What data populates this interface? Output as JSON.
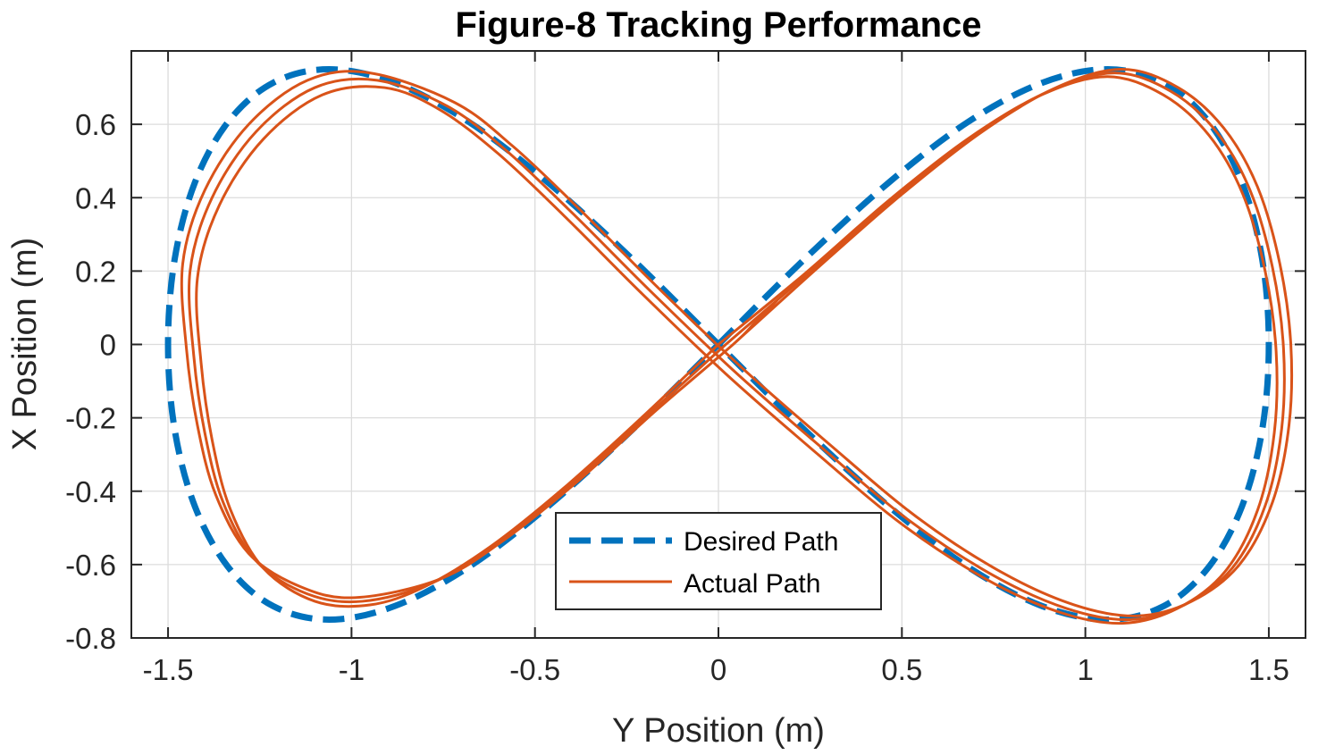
{
  "chart_data": {
    "type": "line",
    "title": "Figure-8 Tracking Performance",
    "xlabel": "Y Position (m)",
    "ylabel": "X Position (m)",
    "xlim": [
      -1.6,
      1.6
    ],
    "ylim": [
      -0.8,
      0.8
    ],
    "grid": true,
    "legend_location": "bottom-center",
    "x_ticks": [
      -1.5,
      -1,
      -0.5,
      0,
      0.5,
      1,
      1.5
    ],
    "x_tick_labels": [
      "-1.5",
      "-1",
      "-0.5",
      "0",
      "0.5",
      "1",
      "1.5"
    ],
    "y_ticks": [
      -0.8,
      -0.6,
      -0.4,
      -0.2,
      0,
      0.2,
      0.4,
      0.6
    ],
    "y_tick_labels": [
      "-0.8",
      "-0.6",
      "-0.4",
      "-0.2",
      "0",
      "0.2",
      "0.4",
      "0.6"
    ],
    "series": [
      {
        "name": "Desired Path",
        "style": "dashed",
        "color": "#0072BD",
        "equation": "y = 1.5*sin(t), x = 0.75*sin(2t)",
        "x": [
          0.0,
          0.234,
          0.464,
          0.681,
          0.882,
          1.061,
          1.214,
          1.336,
          1.427,
          1.482,
          1.5,
          1.482,
          1.427,
          1.336,
          1.214,
          1.061,
          0.882,
          0.681,
          0.464,
          0.234,
          0.0,
          -0.234,
          -0.464,
          -0.681,
          -0.882,
          -1.061,
          -1.214,
          -1.336,
          -1.427,
          -1.482,
          -1.5,
          -1.482,
          -1.427,
          -1.336,
          -1.214,
          -1.061,
          -0.882,
          -0.681,
          -0.464,
          -0.234,
          0.0
        ],
        "y": [
          0.0,
          0.232,
          0.441,
          0.607,
          0.713,
          0.75,
          0.713,
          0.607,
          0.441,
          0.232,
          0.0,
          -0.232,
          -0.441,
          -0.607,
          -0.713,
          -0.75,
          -0.713,
          -0.607,
          -0.441,
          -0.232,
          0.0,
          0.232,
          0.441,
          0.607,
          0.713,
          0.75,
          0.713,
          0.607,
          0.441,
          0.232,
          0.0,
          -0.232,
          -0.441,
          -0.607,
          -0.713,
          -0.75,
          -0.713,
          -0.607,
          -0.441,
          -0.232,
          0.0
        ]
      },
      {
        "name": "Actual Path",
        "style": "solid",
        "color": "#D95319",
        "loops": [
          {
            "x": [
              0.0,
              0.232,
              0.461,
              0.679,
              0.88,
              1.06,
              1.213,
              1.337,
              1.429,
              1.49,
              1.52,
              1.515,
              1.47,
              1.38,
              1.25,
              1.1,
              0.93,
              0.73,
              0.5,
              0.26,
              0.02,
              -0.21,
              -0.42,
              -0.6,
              -0.76,
              -0.91,
              -1.08,
              -1.24,
              -1.36,
              -1.42,
              -1.41,
              -1.38,
              -1.33,
              -1.24,
              -1.1,
              -0.95,
              -0.8,
              -0.62,
              -0.42,
              -0.21,
              0.0
            ],
            "y": [
              0.0,
              0.19,
              0.39,
              0.56,
              0.68,
              0.73,
              0.68,
              0.57,
              0.41,
              0.2,
              -0.02,
              -0.24,
              -0.45,
              -0.62,
              -0.72,
              -0.76,
              -0.73,
              -0.64,
              -0.49,
              -0.29,
              -0.08,
              0.14,
              0.35,
              0.52,
              0.64,
              0.7,
              0.68,
              0.56,
              0.38,
              0.18,
              -0.05,
              -0.26,
              -0.45,
              -0.61,
              -0.7,
              -0.71,
              -0.66,
              -0.55,
              -0.39,
              -0.2,
              0.0
            ]
          },
          {
            "x": [
              0.02,
              0.252,
              0.481,
              0.699,
              0.9,
              1.08,
              1.233,
              1.357,
              1.449,
              1.51,
              1.54,
              1.535,
              1.49,
              1.4,
              1.27,
              1.12,
              0.95,
              0.75,
              0.52,
              0.28,
              0.04,
              -0.19,
              -0.4,
              -0.58,
              -0.74,
              -0.93,
              -1.1,
              -1.26,
              -1.38,
              -1.44,
              -1.43,
              -1.4,
              -1.35,
              -1.26,
              -1.12,
              -0.97,
              -0.78,
              -0.6,
              -0.4,
              -0.19,
              0.02
            ],
            "y": [
              0.0,
              0.2,
              0.4,
              0.57,
              0.69,
              0.74,
              0.69,
              0.58,
              0.42,
              0.21,
              -0.01,
              -0.23,
              -0.44,
              -0.61,
              -0.71,
              -0.75,
              -0.72,
              -0.63,
              -0.48,
              -0.28,
              -0.07,
              0.15,
              0.36,
              0.53,
              0.65,
              0.72,
              0.7,
              0.58,
              0.4,
              0.2,
              -0.03,
              -0.24,
              -0.43,
              -0.59,
              -0.68,
              -0.7,
              -0.65,
              -0.54,
              -0.38,
              -0.19,
              0.0
            ]
          },
          {
            "x": [
              0.04,
              0.272,
              0.501,
              0.719,
              0.92,
              1.1,
              1.253,
              1.377,
              1.469,
              1.53,
              1.56,
              1.555,
              1.51,
              1.42,
              1.29,
              1.14,
              0.97,
              0.77,
              0.54,
              0.3,
              0.06,
              -0.17,
              -0.38,
              -0.56,
              -0.72,
              -0.95,
              -1.12,
              -1.28,
              -1.4,
              -1.46,
              -1.45,
              -1.42,
              -1.37,
              -1.28,
              -1.14,
              -0.99,
              -0.76,
              -0.58,
              -0.38,
              -0.17,
              0.04,
              0.1,
              0.16
            ],
            "y": [
              0.0,
              0.21,
              0.41,
              0.58,
              0.7,
              0.75,
              0.7,
              0.59,
              0.43,
              0.22,
              0.0,
              -0.22,
              -0.43,
              -0.6,
              -0.7,
              -0.74,
              -0.71,
              -0.62,
              -0.47,
              -0.27,
              -0.06,
              0.16,
              0.37,
              0.54,
              0.66,
              0.74,
              0.72,
              0.6,
              0.42,
              0.22,
              -0.01,
              -0.22,
              -0.41,
              -0.57,
              -0.66,
              -0.69,
              -0.64,
              -0.53,
              -0.37,
              -0.18,
              0.0,
              0.06,
              0.12
            ]
          }
        ]
      }
    ],
    "legend": [
      "Desired Path",
      "Actual Path"
    ]
  }
}
